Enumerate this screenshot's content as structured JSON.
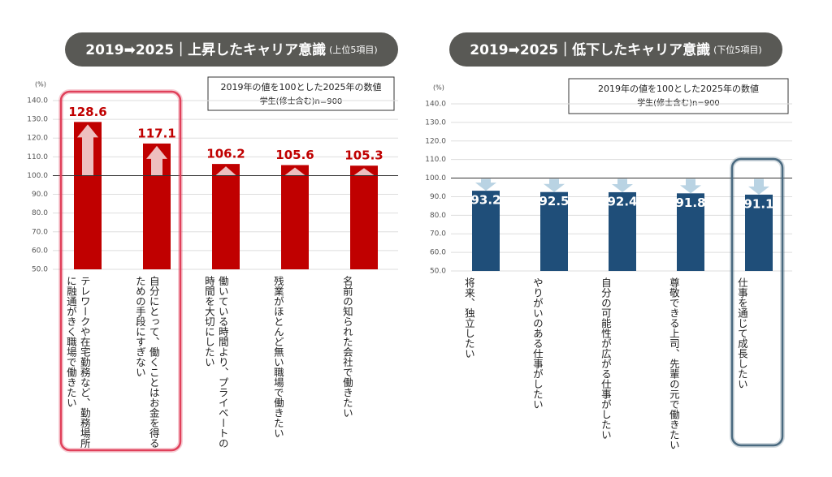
{
  "chart_data": [
    {
      "type": "bar",
      "title": "2019➡2025｜上昇したキャリア意識",
      "subtitle": "(上位5項目)",
      "annotations": [
        "2019年の値を100とした2025年の数値",
        "学生(修士含む)n=900"
      ],
      "y_unit": "(%)",
      "categories": [
        "テレワークや在宅勤務など、勤務場所に融通がきく職場で働きたい",
        "自分にとって、働くことはお金を得るための手段にすぎない",
        "働いている時間より、プライベートの時間を大切にしたい",
        "残業がほとんど無い職場で働きたい",
        "名前の知られた会社で働きたい"
      ],
      "values": [
        128.6,
        117.1,
        106.2,
        105.6,
        105.3
      ],
      "color": "#c00000",
      "value_label_color": "#c00000",
      "value_label_position": "outside",
      "ylim": [
        50,
        140
      ],
      "yticks": [
        {
          "value": 50,
          "label": "50.0"
        },
        {
          "value": 60,
          "label": "60.0"
        },
        {
          "value": 70,
          "label": "70.0"
        },
        {
          "value": 80,
          "label": "80.0"
        },
        {
          "value": 90,
          "label": "90.0"
        },
        {
          "value": 100,
          "label": "100.0"
        },
        {
          "value": 110,
          "label": "110.0"
        },
        {
          "value": 120,
          "label": "120.0"
        },
        {
          "value": 130,
          "label": "130.0"
        },
        {
          "value": 140,
          "label": "140.0"
        }
      ],
      "grid": true,
      "reference_line": 100
    },
    {
      "type": "bar",
      "title": "2019➡2025｜低下したキャリア意識",
      "subtitle": "(下位5項目)",
      "annotations": [
        "2019年の値を100とした2025年の数値",
        "学生(修士含む)n=900"
      ],
      "y_unit": "(%)",
      "categories": [
        "将来、独立したい",
        "やりがいのある仕事がしたい",
        "自分の可能性が広がる仕事がしたい",
        "尊敬できる上司、先輩の元で働きたい",
        "仕事を通じて成長したい"
      ],
      "values": [
        93.2,
        92.5,
        92.4,
        91.8,
        91.1
      ],
      "color": "#1f4e79",
      "value_label_color": "#ffffff",
      "value_label_position": "inside",
      "ylim": [
        50,
        140
      ],
      "yticks": [
        {
          "value": 50,
          "label": "50.0"
        },
        {
          "value": 60,
          "label": "60.0"
        },
        {
          "value": 70,
          "label": "70.0"
        },
        {
          "value": 80,
          "label": "80.0"
        },
        {
          "value": 90,
          "label": "90.0"
        },
        {
          "value": 100,
          "label": "100.0"
        },
        {
          "value": 110,
          "label": "110.0"
        },
        {
          "value": 120,
          "label": "120.0"
        },
        {
          "value": 130,
          "label": "130.0"
        },
        {
          "value": 140,
          "label": "140.0"
        }
      ],
      "grid": true,
      "reference_line": 100
    }
  ]
}
